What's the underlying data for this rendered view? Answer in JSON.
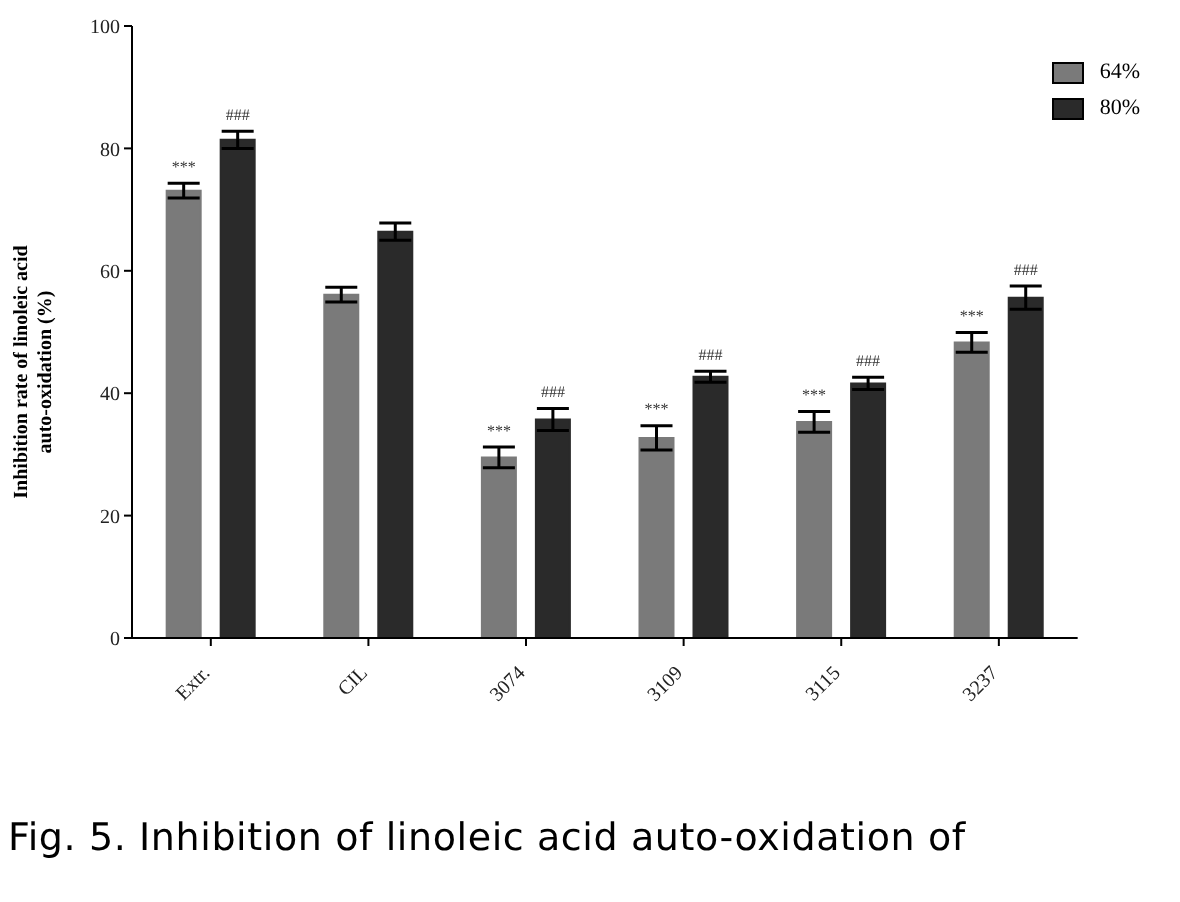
{
  "chart_data": {
    "type": "bar",
    "ylabel": "Inhibition rate of linoleic acid\nauto-oxidation (%)",
    "categories": [
      "Extr.",
      "CIL",
      "3074",
      "3109",
      "3115",
      "3237"
    ],
    "series": [
      {
        "name": "64%",
        "color": "#7a7a7a",
        "values": [
          73.1,
          56.1,
          29.5,
          32.7,
          35.3,
          48.3
        ],
        "errors": [
          1.2,
          1.2,
          1.7,
          2.0,
          1.7,
          1.6
        ],
        "value_labels": [
          "***",
          null,
          "***",
          "***",
          "***",
          "***"
        ]
      },
      {
        "name": "80%",
        "color": "#2a2a2a",
        "values": [
          81.4,
          66.4,
          35.7,
          42.7,
          41.6,
          55.6
        ],
        "errors": [
          1.4,
          1.4,
          1.8,
          0.9,
          1.0,
          1.9
        ],
        "value_labels": [
          "###",
          null,
          "###",
          "###",
          "###",
          "###"
        ]
      }
    ],
    "ylim": [
      0,
      100
    ],
    "yticks": [
      0,
      20,
      40,
      60,
      80,
      100
    ],
    "grid": false,
    "legend": "top right",
    "annotations": [
      "Fig. 5. Inhibition of linoleic acid auto-oxidation of"
    ]
  }
}
